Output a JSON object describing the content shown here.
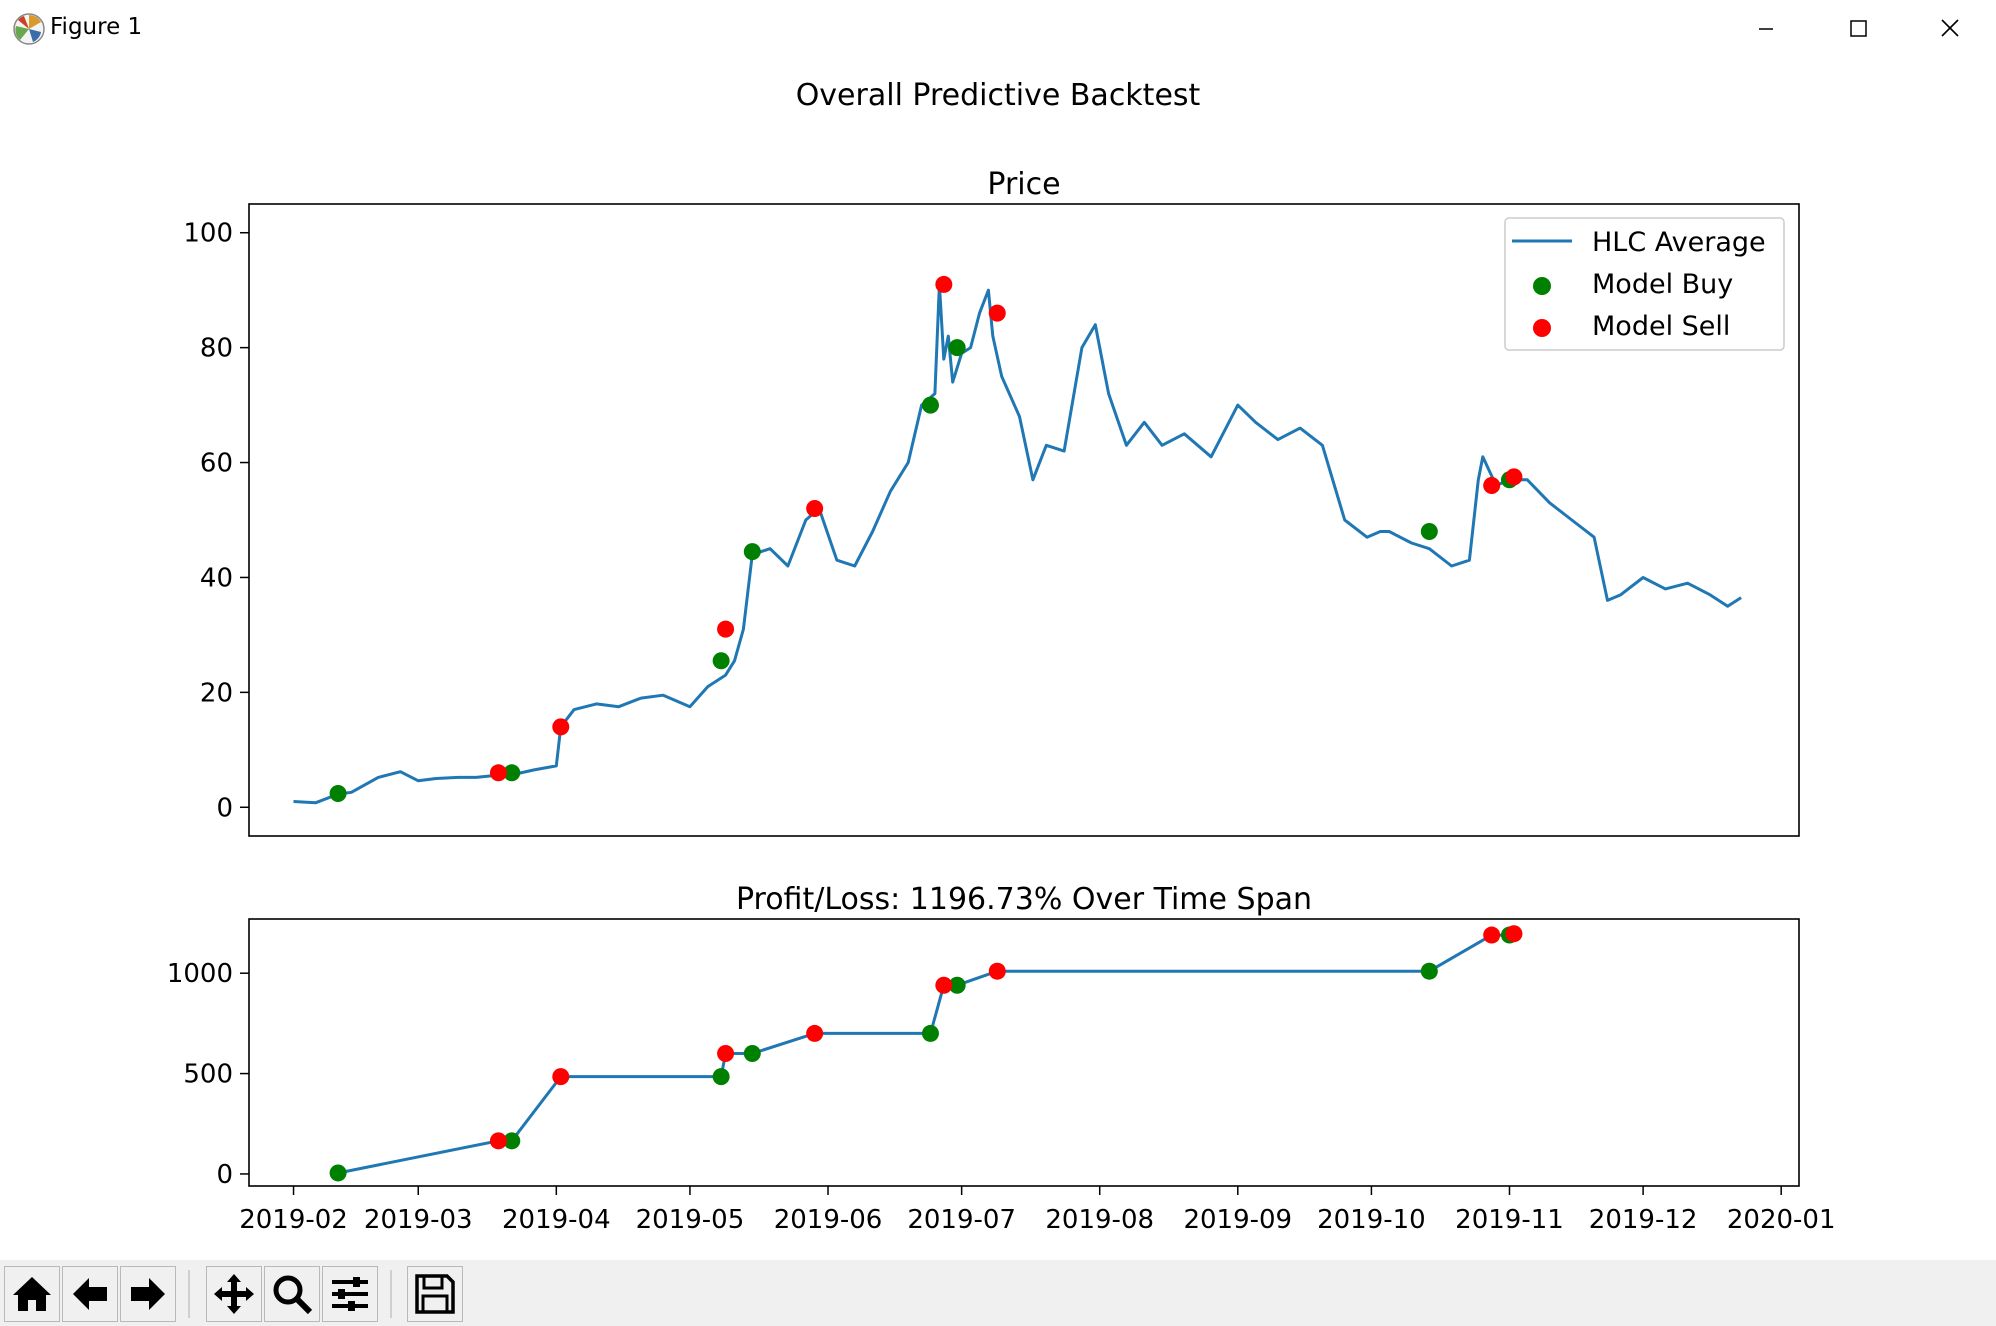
{
  "window": {
    "title": "Figure 1"
  },
  "suptitle": "Overall Predictive Backtest",
  "toolbar": {
    "buttons": [
      {
        "icon": "home-icon"
      },
      {
        "icon": "back-arrow-icon"
      },
      {
        "icon": "forward-arrow-icon"
      },
      {
        "icon": "pan-icon"
      },
      {
        "icon": "zoom-icon"
      },
      {
        "icon": "configure-subplots-icon"
      },
      {
        "icon": "save-icon"
      }
    ]
  },
  "colors": {
    "line": "#1f77b4",
    "buy": "#008000",
    "sell": "#ff0000"
  },
  "chart_data": [
    {
      "type": "line",
      "title": "Price",
      "xlim": [
        "2019-01-22",
        "2020-01-05"
      ],
      "ylim": [
        -5,
        105
      ],
      "yticks": [
        0,
        20,
        40,
        60,
        80,
        100
      ],
      "legend": {
        "placement": "upper right",
        "entries": [
          "HLC Average",
          "Model Buy",
          "Model Sell"
        ]
      },
      "series": [
        {
          "name": "HLC Average",
          "x": [
            "2019-02-01",
            "2019-02-06",
            "2019-02-11",
            "2019-02-14",
            "2019-02-20",
            "2019-02-25",
            "2019-03-01",
            "2019-03-05",
            "2019-03-10",
            "2019-03-14",
            "2019-03-19",
            "2019-03-23",
            "2019-03-27",
            "2019-04-01",
            "2019-04-02",
            "2019-04-05",
            "2019-04-10",
            "2019-04-15",
            "2019-04-20",
            "2019-04-25",
            "2019-05-01",
            "2019-05-05",
            "2019-05-09",
            "2019-05-11",
            "2019-05-13",
            "2019-05-15",
            "2019-05-19",
            "2019-05-23",
            "2019-05-27",
            "2019-05-30",
            "2019-06-03",
            "2019-06-07",
            "2019-06-11",
            "2019-06-15",
            "2019-06-19",
            "2019-06-22",
            "2019-06-25",
            "2019-06-26",
            "2019-06-27",
            "2019-06-28",
            "2019-06-29",
            "2019-07-01",
            "2019-07-03",
            "2019-07-05",
            "2019-07-07",
            "2019-07-08",
            "2019-07-10",
            "2019-07-14",
            "2019-07-17",
            "2019-07-20",
            "2019-07-24",
            "2019-07-28",
            "2019-07-31",
            "2019-08-03",
            "2019-08-07",
            "2019-08-11",
            "2019-08-15",
            "2019-08-20",
            "2019-08-26",
            "2019-09-01",
            "2019-09-05",
            "2019-09-10",
            "2019-09-15",
            "2019-09-20",
            "2019-09-25",
            "2019-09-30",
            "2019-10-03",
            "2019-10-05",
            "2019-10-10",
            "2019-10-14",
            "2019-10-19",
            "2019-10-23",
            "2019-10-25",
            "2019-10-26",
            "2019-10-29",
            "2019-11-01",
            "2019-11-05",
            "2019-11-10",
            "2019-11-15",
            "2019-11-20",
            "2019-11-23",
            "2019-11-26",
            "2019-12-01",
            "2019-12-06",
            "2019-12-11",
            "2019-12-16",
            "2019-12-20",
            "2019-12-23"
          ],
          "y": [
            1,
            0.8,
            2.3,
            2.6,
            5.2,
            6.2,
            4.6,
            5.0,
            5.2,
            5.2,
            5.6,
            5.8,
            6.5,
            7.2,
            14,
            17,
            18,
            17.5,
            19,
            19.5,
            17.5,
            21,
            23,
            25.5,
            31,
            44,
            45,
            42,
            50,
            52,
            43,
            42,
            48,
            55,
            60,
            70,
            72,
            91,
            78,
            82,
            74,
            79,
            80,
            86,
            90,
            82,
            75,
            68,
            57,
            63,
            62,
            80,
            84,
            72,
            63,
            67,
            63,
            65,
            61,
            70,
            67,
            64,
            66,
            63,
            50,
            47,
            48,
            48,
            46,
            45,
            42,
            43,
            57,
            61,
            56,
            57,
            57,
            53,
            50,
            47,
            36,
            37,
            40,
            38,
            39,
            37,
            35,
            36.5
          ]
        }
      ],
      "buy": {
        "name": "Model Buy",
        "x": [
          "2019-02-11",
          "2019-03-22",
          "2019-05-08",
          "2019-05-15",
          "2019-06-24",
          "2019-06-30",
          "2019-10-14",
          "2019-11-01"
        ],
        "y": [
          2.4,
          6,
          25.5,
          44.5,
          70,
          80,
          48,
          57
        ]
      },
      "sell": {
        "name": "Model Sell",
        "x": [
          "2019-03-19",
          "2019-04-02",
          "2019-05-09",
          "2019-05-29",
          "2019-06-27",
          "2019-07-09",
          "2019-10-28",
          "2019-11-02"
        ],
        "y": [
          6,
          14,
          31,
          52,
          91,
          86,
          56,
          57.5
        ]
      }
    },
    {
      "type": "line",
      "title": "Profit/Loss: 1196.73% Over Time Span",
      "xlim": [
        "2019-01-22",
        "2020-01-05"
      ],
      "ylim": [
        -60,
        1270
      ],
      "yticks": [
        0,
        500,
        1000
      ],
      "xticks": [
        "2019-02",
        "2019-03",
        "2019-04",
        "2019-05",
        "2019-06",
        "2019-07",
        "2019-08",
        "2019-09",
        "2019-10",
        "2019-11",
        "2019-12",
        "2020-01"
      ],
      "series": [
        {
          "name": "",
          "x": [
            "2019-02-11",
            "2019-03-19",
            "2019-03-22",
            "2019-04-02",
            "2019-05-08",
            "2019-05-09",
            "2019-05-15",
            "2019-05-29",
            "2019-06-24",
            "2019-06-27",
            "2019-06-30",
            "2019-07-09",
            "2019-10-14",
            "2019-10-28",
            "2019-11-01",
            "2019-11-02"
          ],
          "y": [
            5,
            165,
            165,
            485,
            485,
            600,
            600,
            700,
            700,
            940,
            940,
            1010,
            1010,
            1190,
            1190,
            1196.73
          ]
        }
      ],
      "buy": {
        "name": "Model Buy",
        "x": [
          "2019-02-11",
          "2019-03-22",
          "2019-05-08",
          "2019-05-15",
          "2019-06-24",
          "2019-06-30",
          "2019-10-14",
          "2019-11-01"
        ],
        "y": [
          5,
          165,
          485,
          600,
          700,
          940,
          1010,
          1190
        ]
      },
      "sell": {
        "name": "Model Sell",
        "x": [
          "2019-03-19",
          "2019-04-02",
          "2019-05-09",
          "2019-05-29",
          "2019-06-27",
          "2019-07-09",
          "2019-10-28",
          "2019-11-02"
        ],
        "y": [
          165,
          485,
          600,
          700,
          940,
          1010,
          1190,
          1196.73
        ]
      }
    }
  ]
}
